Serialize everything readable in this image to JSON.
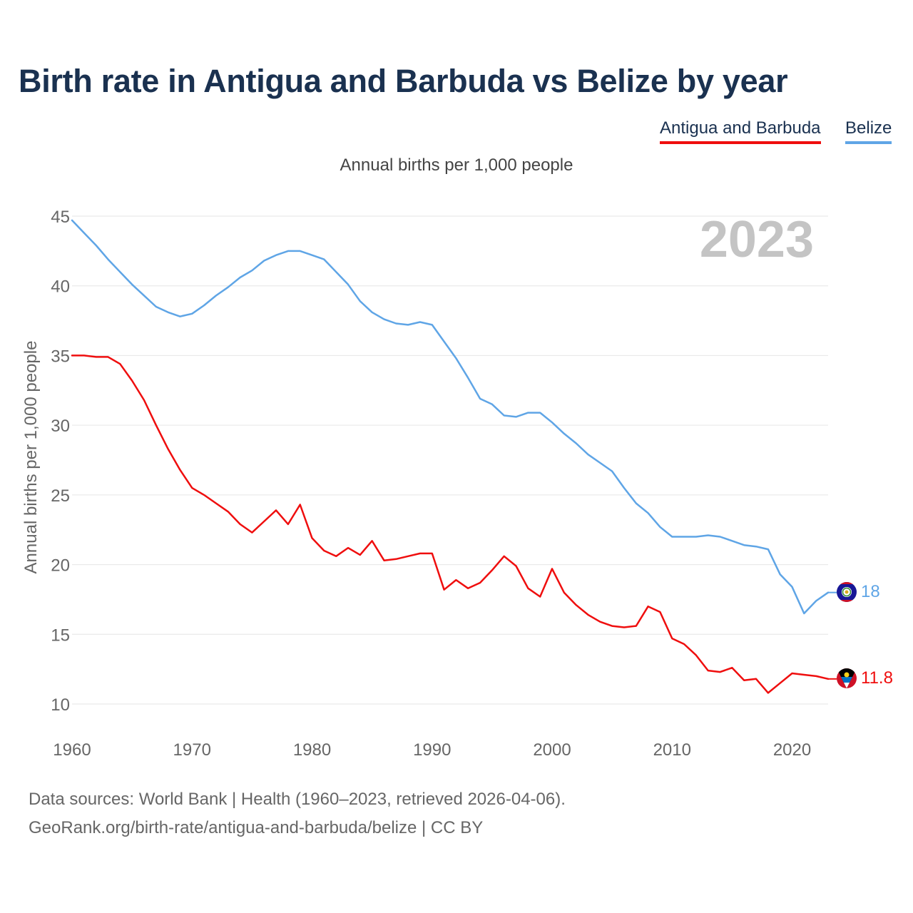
{
  "title": "Birth rate in Antigua and Barbuda vs Belize by year",
  "subtitle": "Annual births per 1,000 people",
  "legend": [
    "Antigua and Barbuda",
    "Belize"
  ],
  "year_label": "2023",
  "footer": {
    "source": "Data sources: World Bank | Health (1960–2023, retrieved 2026-04-06).",
    "credit": "GeoRank.org/birth-rate/antigua-and-barbuda/belize | CC BY"
  },
  "colors": {
    "antigua": "#ef0e0e",
    "belize": "#5fa5e6",
    "title": "#1a3150",
    "grid": "#e6e6e6",
    "axis_text": "#666666",
    "year_label": "#c4c4c4"
  },
  "chart_data": {
    "type": "line",
    "title": "Birth rate in Antigua and Barbuda vs Belize by year",
    "ylabel": "Annual births per 1,000 people",
    "xlabel": "",
    "xlim": [
      1960,
      2023
    ],
    "ylim": [
      10,
      45
    ],
    "xticks": [
      1960,
      1970,
      1980,
      1990,
      2000,
      2010,
      2020
    ],
    "yticks": [
      10,
      15,
      20,
      25,
      30,
      35,
      40,
      45
    ],
    "grid": true,
    "legend_position": "top-right",
    "x": [
      1960,
      1961,
      1962,
      1963,
      1964,
      1965,
      1966,
      1967,
      1968,
      1969,
      1970,
      1971,
      1972,
      1973,
      1974,
      1975,
      1976,
      1977,
      1978,
      1979,
      1980,
      1981,
      1982,
      1983,
      1984,
      1985,
      1986,
      1987,
      1988,
      1989,
      1990,
      1991,
      1992,
      1993,
      1994,
      1995,
      1996,
      1997,
      1998,
      1999,
      2000,
      2001,
      2002,
      2003,
      2004,
      2005,
      2006,
      2007,
      2008,
      2009,
      2010,
      2011,
      2012,
      2013,
      2014,
      2015,
      2016,
      2017,
      2018,
      2019,
      2020,
      2021,
      2022,
      2023
    ],
    "series": [
      {
        "name": "Antigua and Barbuda",
        "end_label": "11.8",
        "values": [
          35.0,
          35.0,
          34.9,
          34.9,
          34.4,
          33.2,
          31.8,
          30.0,
          28.3,
          26.8,
          25.5,
          25.0,
          24.4,
          23.8,
          22.9,
          22.3,
          23.1,
          23.9,
          22.9,
          24.3,
          21.9,
          21.0,
          20.6,
          21.2,
          20.7,
          21.7,
          20.3,
          20.4,
          20.6,
          20.8,
          20.8,
          18.2,
          18.9,
          18.3,
          18.7,
          19.6,
          20.6,
          19.9,
          18.3,
          17.7,
          19.7,
          18.0,
          17.1,
          16.4,
          15.9,
          15.6,
          15.5,
          15.6,
          17.0,
          16.6,
          14.7,
          14.3,
          13.5,
          12.4,
          12.3,
          12.6,
          11.7,
          11.8,
          10.8,
          11.5,
          12.2,
          12.1,
          12.0,
          11.8
        ]
      },
      {
        "name": "Belize",
        "end_label": "18",
        "values": [
          44.7,
          43.8,
          42.9,
          41.9,
          41.0,
          40.1,
          39.3,
          38.5,
          38.1,
          37.8,
          38.0,
          38.6,
          39.3,
          39.9,
          40.6,
          41.1,
          41.8,
          42.2,
          42.5,
          42.5,
          42.2,
          41.9,
          41.0,
          40.1,
          38.9,
          38.1,
          37.6,
          37.3,
          37.2,
          37.4,
          37.2,
          36.0,
          34.8,
          33.4,
          31.9,
          31.5,
          30.7,
          30.6,
          30.9,
          30.9,
          30.2,
          29.4,
          28.7,
          27.9,
          27.3,
          26.7,
          25.5,
          24.4,
          23.7,
          22.7,
          22.0,
          22.0,
          22.0,
          22.1,
          22.0,
          21.7,
          21.4,
          21.3,
          21.1,
          19.3,
          18.4,
          16.5,
          17.4,
          18.0
        ]
      }
    ]
  }
}
